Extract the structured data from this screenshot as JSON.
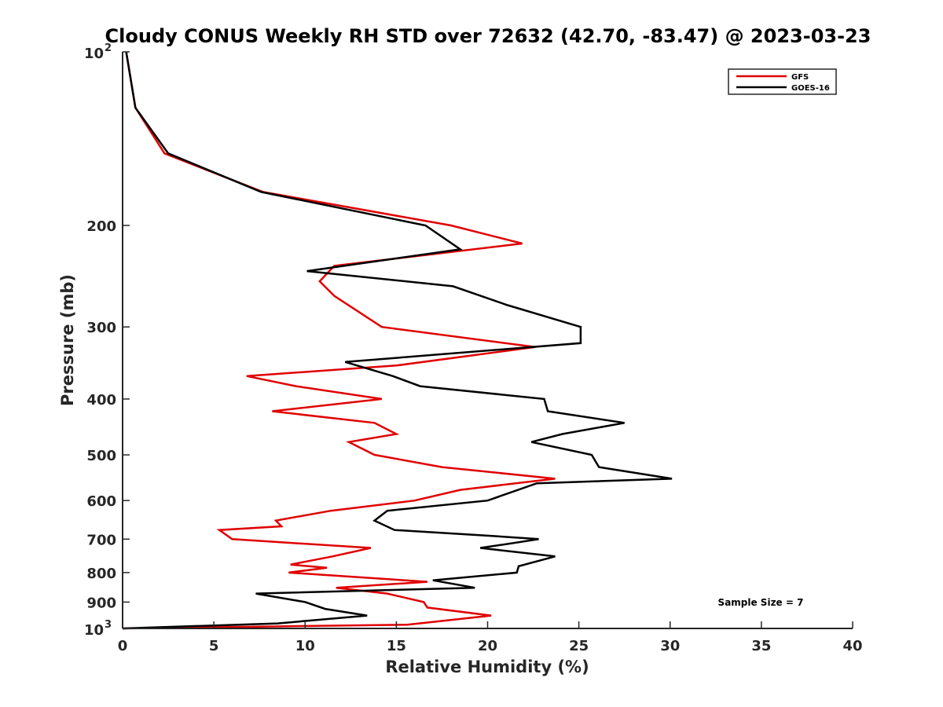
{
  "chart_data": {
    "type": "line",
    "title": "Cloudy CONUS Weekly RH STD over 72632 (42.70, -83.47) @ 2023-03-23",
    "xlabel": "Relative Humidity (%)",
    "ylabel": "Pressure (mb)",
    "xlim": [
      0,
      40
    ],
    "ylim": [
      100,
      1000
    ],
    "y_scale": "log",
    "y_reversed": true,
    "x_ticks": [
      0,
      5,
      10,
      15,
      20,
      25,
      30,
      35,
      40
    ],
    "x_tick_labels": [
      "0",
      "5",
      "10",
      "15",
      "20",
      "25",
      "30",
      "35",
      "40"
    ],
    "y_tick_labels": [
      {
        "value": 200,
        "text": "200"
      },
      {
        "value": 300,
        "text": "300"
      },
      {
        "value": 400,
        "text": "400"
      },
      {
        "value": 500,
        "text": "500"
      },
      {
        "value": 600,
        "text": "600"
      },
      {
        "value": 700,
        "text": "700"
      },
      {
        "value": 800,
        "text": "800"
      },
      {
        "value": 900,
        "text": "900"
      }
    ],
    "y_tick_top": {
      "value": 100,
      "base": "10",
      "exp": "2"
    },
    "y_tick_bottom": {
      "value": 1000,
      "base": "10",
      "exp": "3"
    },
    "grid": false,
    "legend_position": "top-right",
    "series": [
      {
        "name": "GFS",
        "color": "#e00000",
        "points": [
          [
            0.2,
            100
          ],
          [
            0.7,
            125
          ],
          [
            2.3,
            150
          ],
          [
            7.7,
            175
          ],
          [
            18.0,
            200
          ],
          [
            21.9,
            215
          ],
          [
            11.6,
            235
          ],
          [
            10.8,
            250
          ],
          [
            11.6,
            265
          ],
          [
            14.2,
            300
          ],
          [
            22.6,
            325
          ],
          [
            15.0,
            350
          ],
          [
            6.8,
            365
          ],
          [
            9.5,
            380
          ],
          [
            14.2,
            400
          ],
          [
            8.2,
            420
          ],
          [
            13.8,
            440
          ],
          [
            15.0,
            460
          ],
          [
            12.4,
            475
          ],
          [
            13.8,
            500
          ],
          [
            17.5,
            525
          ],
          [
            23.7,
            550
          ],
          [
            18.5,
            575
          ],
          [
            16.0,
            600
          ],
          [
            11.4,
            625
          ],
          [
            8.4,
            650
          ],
          [
            8.7,
            665
          ],
          [
            5.3,
            675
          ],
          [
            6.0,
            700
          ],
          [
            9.0,
            710
          ],
          [
            13.6,
            725
          ],
          [
            11.5,
            750
          ],
          [
            9.2,
            775
          ],
          [
            11.2,
            785
          ],
          [
            9.1,
            800
          ],
          [
            16.7,
            830
          ],
          [
            11.7,
            850
          ],
          [
            14.5,
            870
          ],
          [
            16.5,
            900
          ],
          [
            16.7,
            920
          ],
          [
            20.2,
            950
          ],
          [
            15.6,
            985
          ],
          [
            0.0,
            1000
          ]
        ]
      },
      {
        "name": "GOES-16",
        "color": "#000000",
        "points": [
          [
            0.2,
            100
          ],
          [
            0.7,
            125
          ],
          [
            2.5,
            150
          ],
          [
            7.6,
            175
          ],
          [
            16.6,
            200
          ],
          [
            18.5,
            220
          ],
          [
            10.1,
            240
          ],
          [
            18.1,
            255
          ],
          [
            21.1,
            275
          ],
          [
            25.1,
            300
          ],
          [
            25.1,
            320
          ],
          [
            12.2,
            345
          ],
          [
            14.8,
            365
          ],
          [
            16.3,
            380
          ],
          [
            23.1,
            400
          ],
          [
            23.3,
            420
          ],
          [
            27.5,
            440
          ],
          [
            24.1,
            460
          ],
          [
            22.4,
            475
          ],
          [
            25.7,
            500
          ],
          [
            26.1,
            525
          ],
          [
            30.1,
            550
          ],
          [
            22.7,
            560
          ],
          [
            20.0,
            600
          ],
          [
            14.5,
            625
          ],
          [
            13.8,
            650
          ],
          [
            14.9,
            675
          ],
          [
            19.9,
            690
          ],
          [
            22.8,
            700
          ],
          [
            20.9,
            715
          ],
          [
            19.6,
            725
          ],
          [
            23.7,
            750
          ],
          [
            21.7,
            780
          ],
          [
            21.6,
            800
          ],
          [
            17.0,
            825
          ],
          [
            19.3,
            850
          ],
          [
            7.3,
            870
          ],
          [
            10.0,
            900
          ],
          [
            11.1,
            925
          ],
          [
            13.4,
            950
          ],
          [
            8.5,
            980
          ],
          [
            0.0,
            1000
          ]
        ]
      }
    ],
    "annotations": [
      {
        "text": "Sample Size = 7"
      }
    ]
  }
}
